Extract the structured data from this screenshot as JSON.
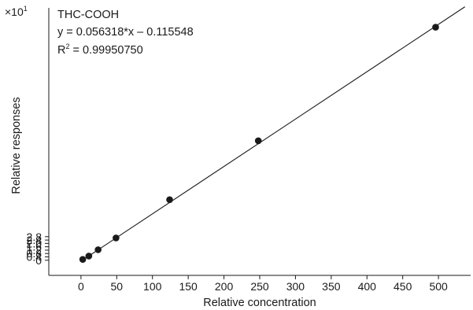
{
  "chart_data": {
    "type": "scatter",
    "compound": "THC-COOH",
    "equation": "y = 0.056318*x – 0.115548",
    "r2_prefix": "R",
    "r2_sup": "2",
    "r2_value": " = 0.99950750",
    "y_multiplier_base": "×10",
    "y_multiplier_exp": "1",
    "xlabel": "Relative concentration",
    "ylabel": "Relative responses",
    "xlim": [
      -45,
      545
    ],
    "ylim": [
      -0.18,
      3.0
    ],
    "x_ticks": [
      0,
      50,
      100,
      150,
      200,
      250,
      300,
      350,
      400,
      450,
      500
    ],
    "y_ticks": [
      "0",
      "0.4",
      "0.8",
      "1.2",
      "1.6",
      "2.0",
      "2.4",
      "2.8"
    ],
    "fit": {
      "slope": 0.0056318,
      "intercept": -0.0115548,
      "x_range": [
        0,
        537
      ]
    },
    "points": [
      {
        "x": 2.5,
        "y": 0.01
      },
      {
        "x": 11,
        "y": 0.05
      },
      {
        "x": 24,
        "y": 0.125
      },
      {
        "x": 49,
        "y": 0.265
      },
      {
        "x": 124,
        "y": 0.72
      },
      {
        "x": 248,
        "y": 1.42
      },
      {
        "x": 496,
        "y": 2.77
      }
    ],
    "grid": false,
    "legend": "none"
  }
}
